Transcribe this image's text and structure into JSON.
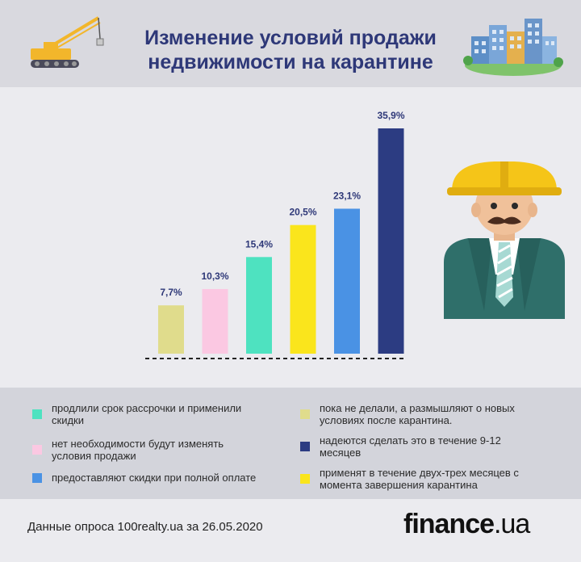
{
  "header": {
    "title_line1": "Изменение условий продажи",
    "title_line2": "недвижимости на карантине"
  },
  "chart_data": {
    "type": "bar",
    "categories": [
      "пока не делали, а размышляют о новых условиях после карантина",
      "нет необходимости будут изменять условия продажи",
      "продлили срок рассрочки и применили скидки",
      "применят в течение двух-трех месяцев с момента завершения карантина",
      "предоставляют скидки при полной оплате",
      "надеются сделать это в течение 9-12 месяцев"
    ],
    "values": [
      7.7,
      10.3,
      15.4,
      20.5,
      23.1,
      35.9
    ],
    "labels": [
      "7,7%",
      "10,3%",
      "15,4%",
      "20,5%",
      "23,1%",
      "35,9%"
    ],
    "colors": [
      "#e0dc8c",
      "#fbc8e2",
      "#4ee2c0",
      "#fae51c",
      "#4a92e4",
      "#2c3c82"
    ],
    "ylim": [
      0,
      35.9
    ],
    "grid": false,
    "legend": "bottom"
  },
  "legend": [
    {
      "text_line1": "продлили срок рассрочки и применили",
      "text_line2": "скидки",
      "color": "#4ee2c0"
    },
    {
      "text_line1": "пока не делали, а размышляют о новых",
      "text_line2": "условиях после карантина.",
      "color": "#e0dc8c"
    },
    {
      "text_line1": "нет необходимости будут изменять",
      "text_line2": "условия продажи",
      "color": "#fbc8e2"
    },
    {
      "text_line1": "надеются сделать это в течение 9-12",
      "text_line2": "месяцев",
      "color": "#2c3c82"
    },
    {
      "text_line1": "предоставляют скидки при полной оплате",
      "text_line2": "",
      "color": "#4a92e4"
    },
    {
      "text_line1": "применят в течение двух-трех месяцев с",
      "text_line2": "момента завершения карантина",
      "color": "#fae51c"
    }
  ],
  "footer": {
    "source": "Данные опроса 100realty.ua за 26.05.2020",
    "brand_main": "finance",
    "brand_suffix": ".ua"
  }
}
